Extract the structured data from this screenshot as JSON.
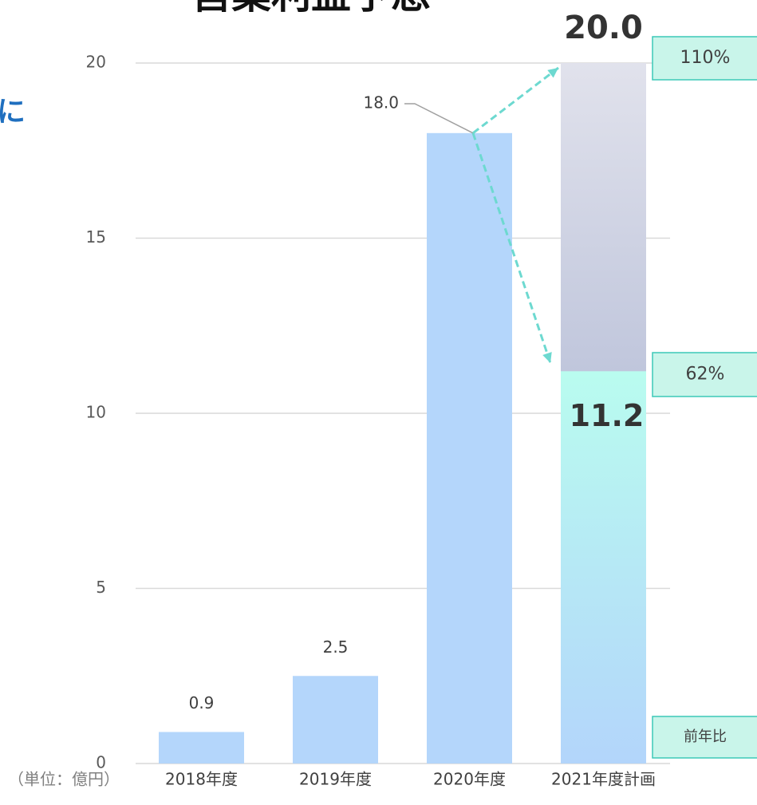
{
  "chart_data": {
    "type": "bar",
    "title": "営業利益予想",
    "side_text": "に",
    "unit_label": "（単位：億円）",
    "categories": [
      "2018年度",
      "2019年度",
      "2020年度",
      "2021年度計画"
    ],
    "series": [
      {
        "color": "#b4d6fb",
        "values": [
          0.9,
          2.5,
          18.0,
          11.2
        ],
        "value_labels": [
          "0.9",
          "2.5",
          "18.0",
          "11.2"
        ]
      },
      {
        "color": "#a7b1d0",
        "values": [
          null,
          null,
          null,
          20.0
        ],
        "value_labels": [
          null,
          null,
          null,
          "20.0"
        ]
      }
    ],
    "annotations": [
      "110%",
      "62%",
      "前年比"
    ],
    "ylim": [
      0,
      20
    ],
    "yticks": [
      0,
      5,
      10,
      15,
      20
    ],
    "grid": true
  }
}
